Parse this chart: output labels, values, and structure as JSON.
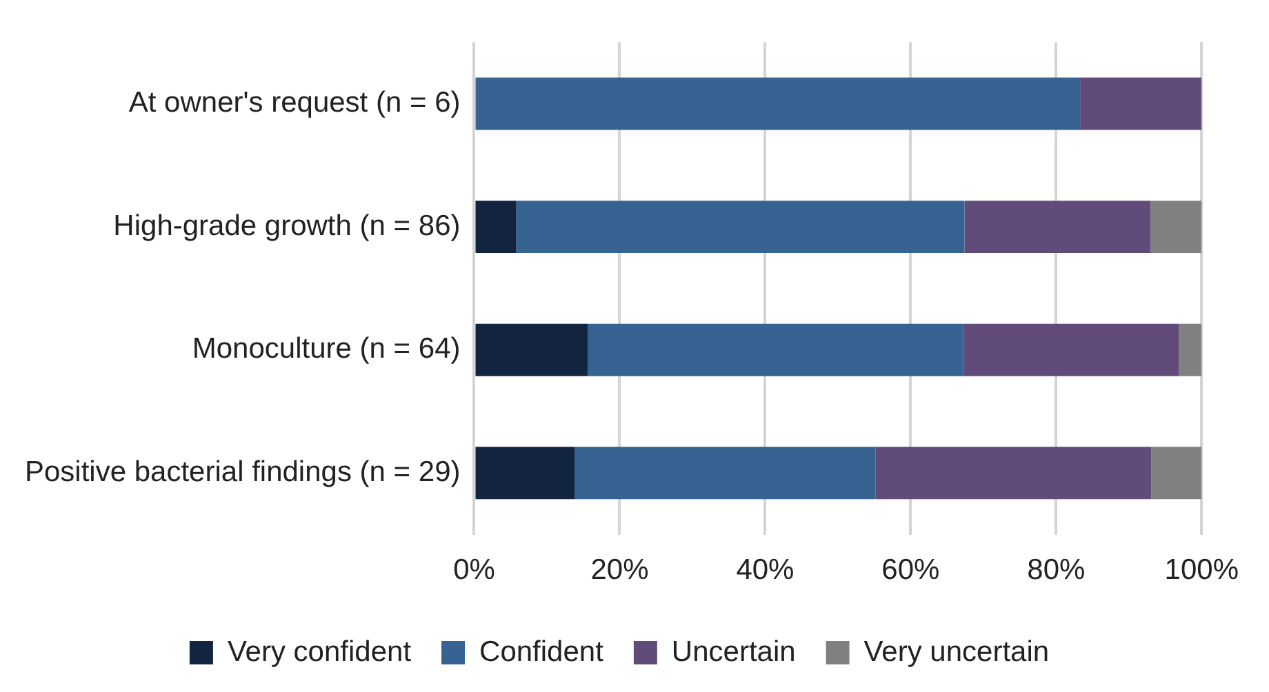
{
  "chart_data": {
    "type": "bar",
    "orientation": "horizontal",
    "stacked": true,
    "categories": [
      "At owner's request (n = 6)",
      "High-grade growth (n = 86)",
      "Monoculture (n = 64)",
      "Positive bacterial findings (n = 29)"
    ],
    "series": [
      {
        "name": "Very confident",
        "color": "#12243f",
        "values": [
          0,
          5.8,
          15.6,
          13.8
        ]
      },
      {
        "name": "Confident",
        "color": "#366391",
        "values": [
          83.3,
          61.6,
          51.6,
          41.4
        ]
      },
      {
        "name": "Uncertain",
        "color": "#614b7a",
        "values": [
          16.7,
          25.6,
          29.7,
          37.9
        ]
      },
      {
        "name": "Very uncertain",
        "color": "#808080",
        "values": [
          0,
          7.0,
          3.1,
          6.9
        ]
      }
    ],
    "xlim": [
      0,
      100
    ],
    "xticks": [
      {
        "value": 0,
        "label": "0%"
      },
      {
        "value": 20,
        "label": "20%"
      },
      {
        "value": 40,
        "label": "40%"
      },
      {
        "value": 60,
        "label": "60%"
      },
      {
        "value": 80,
        "label": "80%"
      },
      {
        "value": 100,
        "label": "100%"
      }
    ],
    "grid": "x",
    "legend": "bottom"
  }
}
